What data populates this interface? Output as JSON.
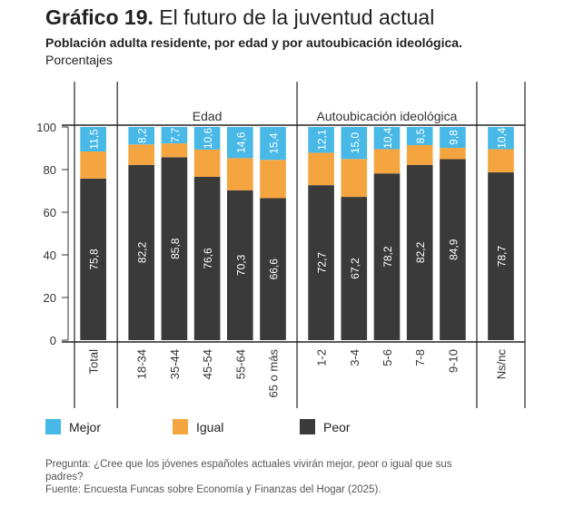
{
  "header": {
    "title_prefix": "Gráfico 19.",
    "title_rest": " El futuro de la juventud actual",
    "subtitle": "Población adulta residente, por edad y por autoubicación ideológica.",
    "units": "Porcentajes"
  },
  "chart_data": {
    "type": "bar",
    "stacked": true,
    "ylim": [
      0,
      100
    ],
    "yticks": [
      0,
      20,
      40,
      60,
      80,
      100
    ],
    "groups": [
      {
        "label": "",
        "categories": [
          "Total"
        ]
      },
      {
        "label": "Edad",
        "categories": [
          "18-34",
          "35-44",
          "45-54",
          "55-64",
          "65 o más"
        ]
      },
      {
        "label": "Autoubicación ideológica",
        "categories": [
          "1-2",
          "3-4",
          "5-6",
          "7-8",
          "9-10"
        ]
      },
      {
        "label": "",
        "categories": [
          "Ns/nc"
        ]
      }
    ],
    "categories": [
      "Total",
      "18-34",
      "35-44",
      "45-54",
      "55-64",
      "65 o más",
      "1-2",
      "3-4",
      "5-6",
      "7-8",
      "9-10",
      "Ns/nc"
    ],
    "series": [
      {
        "name": "Peor",
        "color": "#3a3a3a",
        "values": [
          75.8,
          82.2,
          85.8,
          76.6,
          70.3,
          66.6,
          72.7,
          67.2,
          78.2,
          82.2,
          84.9,
          78.7
        ],
        "labels": [
          "75,8",
          "82,2",
          "85,8",
          "76,6",
          "70,3",
          "66,6",
          "72,7",
          "67,2",
          "78,2",
          "82,2",
          "84,9",
          "78,7"
        ]
      },
      {
        "name": "Igual",
        "color": "#f4a540",
        "values": [
          12.7,
          9.6,
          6.5,
          12.8,
          15.1,
          18.0,
          15.2,
          17.8,
          11.4,
          9.3,
          5.3,
          10.9
        ],
        "labels": [
          "",
          "",
          "",
          "",
          "",
          "",
          "",
          "",
          "",
          "",
          "",
          ""
        ]
      },
      {
        "name": "Mejor",
        "color": "#48b8e6",
        "values": [
          11.5,
          8.2,
          7.7,
          10.6,
          14.6,
          15.4,
          12.1,
          15.0,
          10.4,
          8.5,
          9.8,
          10.4
        ],
        "labels": [
          "11,5",
          "8,2",
          "7,7",
          "10,6",
          "14,6",
          "15,4",
          "12,1",
          "15,0",
          "10,4",
          "8,5",
          "9,8",
          "10,4"
        ]
      }
    ]
  },
  "legend": [
    {
      "label": "Mejor",
      "color": "#48b8e6"
    },
    {
      "label": "Igual",
      "color": "#f4a540"
    },
    {
      "label": "Peor",
      "color": "#3a3a3a"
    }
  ],
  "footer": {
    "question": "Pregunta: ¿Cree que los jóvenes españoles actuales vivirán mejor, peor o igual que sus",
    "question_cont": "padres?",
    "source": "Fuente: Encuesta Funcas sobre Economía y Finanzas del Hogar (2025)."
  }
}
